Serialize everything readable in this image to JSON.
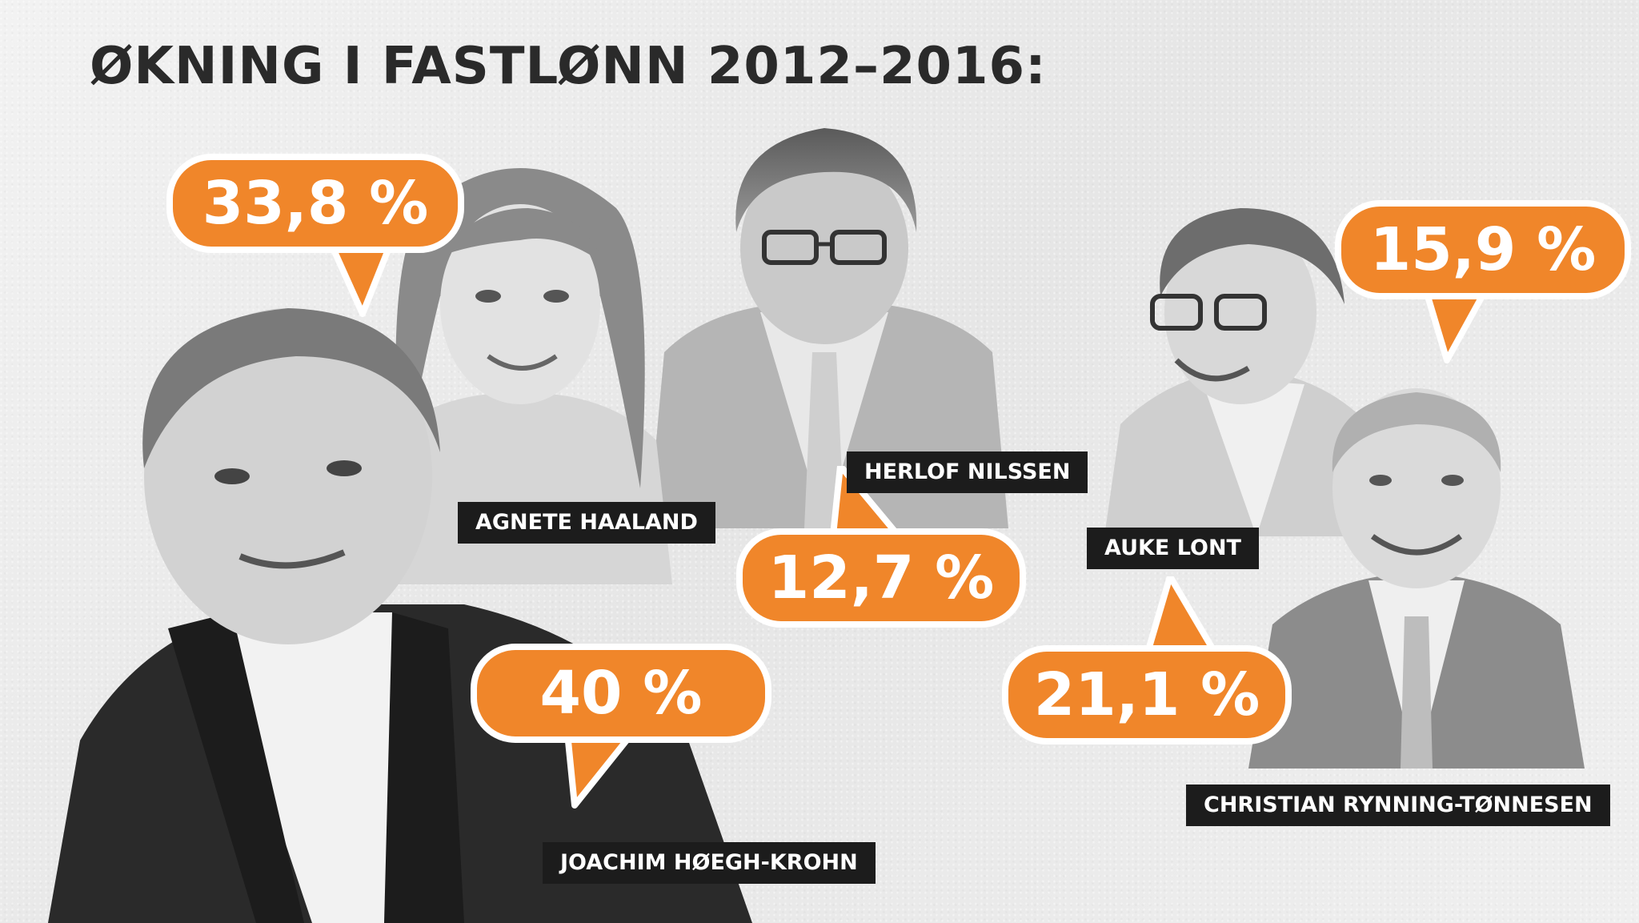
{
  "title": "ØKNING I FASTLØNN 2012–2016:",
  "colors": {
    "accent": "#f0862a",
    "tag_background": "#1c1c1c",
    "title": "#2a2a2a",
    "background": "#ececec"
  },
  "people": {
    "joachim": {
      "name": "JOACHIM HØEGH-KROHN",
      "increase": "40 %"
    },
    "agnete": {
      "name": "AGNETE HAALAND",
      "increase": "33,8 %"
    },
    "herlof": {
      "name": "HERLOF NILSSEN",
      "increase": "12,7 %"
    },
    "auke": {
      "name": "AUKE LONT",
      "increase": "21,1 %"
    },
    "christian": {
      "name": "CHRISTIAN RYNNING-TØNNESEN",
      "increase": "15,9 %"
    }
  }
}
